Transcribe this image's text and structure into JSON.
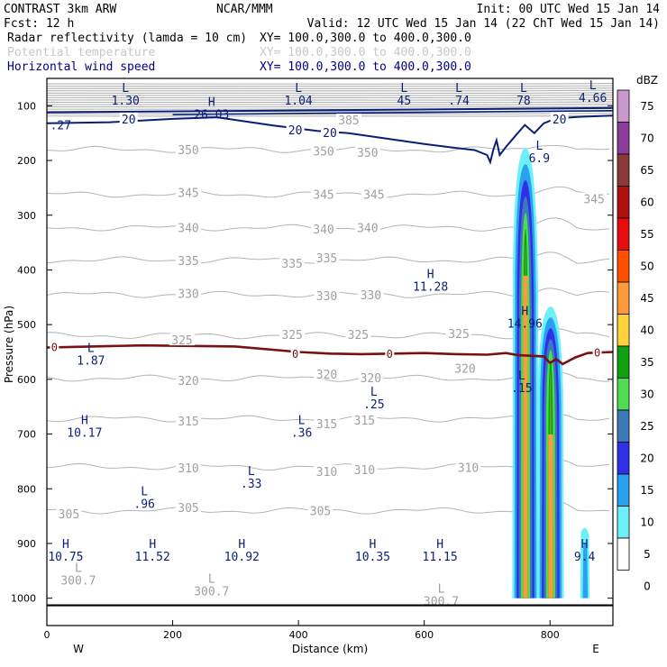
{
  "header": {
    "line1_left": "CONTRAST  3km ARW",
    "line1_mid": "NCAR/MMM",
    "line1_right": "Init: 00 UTC Wed 15 Jan 14",
    "line2_left": "Fcst:   12 h",
    "line2_right": "Valid: 12 UTC Wed 15 Jan 14 (22 ChT Wed 15 Jan 14)",
    "fields": [
      {
        "label": "Radar reflectivity (lamda = 10 cm)",
        "xy": "XY= 100.0,300.0 to 400.0,300.0",
        "color": "#000000"
      },
      {
        "label": "Potential temperature",
        "xy": "XY= 100.0,300.0 to 400.0,300.0",
        "color": "#c8c8c8"
      },
      {
        "label": "Horizontal wind speed",
        "xy": "XY= 100.0,300.0 to 400.0,300.0",
        "color": "#000080"
      }
    ]
  },
  "colors": {
    "theta": "#b4b4b4",
    "theta_label": "#a0a0a0",
    "wind": "#0a1e78",
    "zero_line": "#7a1010",
    "axis": "#000000"
  },
  "chart_data": {
    "type": "heatmap",
    "title": "Radar reflectivity (lamda = 10 cm) / Potential temperature / Horizontal wind speed",
    "xlabel": "Distance (km)",
    "ylabel": "Pressure (hPa)",
    "xlim": [
      0,
      900
    ],
    "ylim": [
      1050,
      50
    ],
    "x_ticks": [
      0,
      200,
      400,
      600,
      800
    ],
    "y_ticks": [
      100,
      200,
      300,
      400,
      500,
      600,
      700,
      800,
      900,
      1000
    ],
    "endpoints": {
      "left": "W",
      "right": "E"
    },
    "colorbar": {
      "unit": "dBZ",
      "levels": [
        75,
        70,
        65,
        60,
        55,
        50,
        45,
        40,
        35,
        30,
        25,
        20,
        15,
        10,
        5,
        0
      ],
      "colors": [
        "#c899cc",
        "#8a3d9c",
        "#8a3838",
        "#b01010",
        "#e80c0c",
        "#ff5000",
        "#ff9a3c",
        "#ffd23c",
        "#10a010",
        "#50dc50",
        "#3a7ab8",
        "#3030e8",
        "#2aa0f0",
        "#6ef0f8",
        "#ffffff"
      ]
    },
    "reflectivity_cells": [
      {
        "x": [
          740,
          782
        ],
        "p": [
          180,
          1000
        ],
        "max_dbz": 35
      },
      {
        "x": [
          780,
          822
        ],
        "p": [
          470,
          1000
        ],
        "max_dbz": 35
      }
    ],
    "theta_contours": [
      {
        "label": "350",
        "p": 180
      },
      {
        "label": "345",
        "p": 262
      },
      {
        "label": "340",
        "p": 323
      },
      {
        "label": "335",
        "p": 382
      },
      {
        "label": "330",
        "p": 445
      },
      {
        "label": "325",
        "p": 520
      },
      {
        "label": "320",
        "p": 598
      },
      {
        "label": "315",
        "p": 672
      },
      {
        "label": "310",
        "p": 760
      },
      {
        "label": "305",
        "p": 840
      }
    ],
    "theta_labels": [
      {
        "text": "385",
        "x": 480,
        "p": 126
      },
      {
        "text": "350",
        "x": 225,
        "p": 180
      },
      {
        "text": "350",
        "x": 440,
        "p": 183
      },
      {
        "text": "350",
        "x": 510,
        "p": 185
      },
      {
        "text": "345",
        "x": 225,
        "p": 258
      },
      {
        "text": "345",
        "x": 440,
        "p": 262
      },
      {
        "text": "345",
        "x": 520,
        "p": 262
      },
      {
        "text": "345",
        "x": 870,
        "p": 270
      },
      {
        "text": "340",
        "x": 225,
        "p": 323
      },
      {
        "text": "340",
        "x": 440,
        "p": 325
      },
      {
        "text": "340",
        "x": 510,
        "p": 323
      },
      {
        "text": "335",
        "x": 225,
        "p": 383
      },
      {
        "text": "335",
        "x": 390,
        "p": 388
      },
      {
        "text": "335",
        "x": 445,
        "p": 378
      },
      {
        "text": "330",
        "x": 225,
        "p": 443
      },
      {
        "text": "330",
        "x": 445,
        "p": 447
      },
      {
        "text": "330",
        "x": 515,
        "p": 445
      },
      {
        "text": "325",
        "x": 215,
        "p": 528
      },
      {
        "text": "325",
        "x": 390,
        "p": 518
      },
      {
        "text": "325",
        "x": 495,
        "p": 518
      },
      {
        "text": "325",
        "x": 655,
        "p": 516
      },
      {
        "text": "320",
        "x": 225,
        "p": 602
      },
      {
        "text": "320",
        "x": 445,
        "p": 590
      },
      {
        "text": "320",
        "x": 515,
        "p": 597
      },
      {
        "text": "320",
        "x": 665,
        "p": 580
      },
      {
        "text": "315",
        "x": 225,
        "p": 676
      },
      {
        "text": "315",
        "x": 445,
        "p": 681
      },
      {
        "text": "315",
        "x": 505,
        "p": 674
      },
      {
        "text": "310",
        "x": 225,
        "p": 762
      },
      {
        "text": "310",
        "x": 445,
        "p": 768
      },
      {
        "text": "310",
        "x": 505,
        "p": 765
      },
      {
        "text": "310",
        "x": 670,
        "p": 761
      },
      {
        "text": "305",
        "x": 35,
        "p": 846
      },
      {
        "text": "305",
        "x": 225,
        "p": 834
      },
      {
        "text": "305",
        "x": 435,
        "p": 840
      }
    ],
    "wind_labels": [
      {
        "text": "20",
        "x": 130,
        "p": 124
      },
      {
        "text": "20",
        "x": 395,
        "p": 144
      },
      {
        "text": "20",
        "x": 450,
        "p": 149
      },
      {
        "text": "20",
        "x": 815,
        "p": 124
      }
    ],
    "wind_contour_20": {
      "x": [
        0,
        100,
        200,
        270,
        300,
        360,
        430,
        480,
        540,
        600,
        650,
        680,
        700,
        705,
        710,
        715,
        720,
        730,
        745,
        760,
        775,
        790,
        810,
        850,
        900
      ],
      "p": [
        132,
        130,
        124,
        121,
        126,
        136,
        146,
        150,
        160,
        170,
        177,
        181,
        190,
        203,
        180,
        163,
        190,
        175,
        155,
        135,
        150,
        132,
        123,
        120,
        118
      ]
    },
    "zero_line": {
      "x": [
        0,
        150,
        300,
        400,
        450,
        500,
        550,
        600,
        650,
        700,
        730,
        750,
        790,
        800,
        810,
        820,
        840,
        860,
        900
      ],
      "p": [
        542,
        538,
        540,
        550,
        553,
        554,
        553,
        552,
        554,
        555,
        552,
        556,
        558,
        570,
        563,
        572,
        560,
        552,
        550
      ]
    },
    "zero_labels": [
      {
        "text": "0",
        "x": 12,
        "p": 542
      },
      {
        "text": "0",
        "x": 395,
        "p": 554
      },
      {
        "text": "0",
        "x": 545,
        "p": 554
      },
      {
        "text": "0",
        "x": 875,
        "p": 552
      }
    ],
    "annotations": [
      {
        "symbol": "L",
        "value": "1.30",
        "x": 125,
        "p": 85
      },
      {
        "symbol": "H",
        "value": "26.03",
        "x": 262,
        "p": 110
      },
      {
        "symbol": "L",
        "value": "1.04",
        "x": 400,
        "p": 85
      },
      {
        "symbol": "L",
        "value": "45",
        "x": 568,
        "p": 85
      },
      {
        "symbol": "L",
        "value": ".74",
        "x": 655,
        "p": 85
      },
      {
        "symbol": "L",
        "value": "78",
        "x": 758,
        "p": 85
      },
      {
        "symbol": "L",
        "value": "4.66",
        "x": 868,
        "p": 80
      },
      {
        "symbol": "",
        "value": ".27",
        "x": 22,
        "p": 130
      },
      {
        "symbol": "L",
        "value": "6.9",
        "x": 783,
        "p": 190
      },
      {
        "symbol": "H",
        "value": "11.28",
        "x": 610,
        "p": 425
      },
      {
        "symbol": "H",
        "value": "14.96",
        "x": 760,
        "p": 492
      },
      {
        "symbol": "L",
        "value": "1.87",
        "x": 70,
        "p": 560
      },
      {
        "symbol": "L",
        "value": ".15",
        "x": 755,
        "p": 610
      },
      {
        "symbol": "L",
        "value": ".25",
        "x": 520,
        "p": 640
      },
      {
        "symbol": "H",
        "value": "10.17",
        "x": 60,
        "p": 692
      },
      {
        "symbol": "L",
        "value": ".36",
        "x": 405,
        "p": 692
      },
      {
        "symbol": "L",
        "value": ".33",
        "x": 325,
        "p": 785
      },
      {
        "symbol": "L",
        "value": ".96",
        "x": 155,
        "p": 822
      },
      {
        "symbol": "H",
        "value": "10.75",
        "x": 30,
        "p": 918
      },
      {
        "symbol": "H",
        "value": "11.52",
        "x": 168,
        "p": 918
      },
      {
        "symbol": "H",
        "value": "10.92",
        "x": 310,
        "p": 918
      },
      {
        "symbol": "H",
        "value": "10.35",
        "x": 518,
        "p": 918
      },
      {
        "symbol": "H",
        "value": "11.15",
        "x": 625,
        "p": 918
      },
      {
        "symbol": "H",
        "value": "9.4",
        "x": 855,
        "p": 918
      }
    ],
    "low_theta_labels": [
      {
        "symbol": "L",
        "value": "300.7",
        "x": 50,
        "p": 962
      },
      {
        "symbol": "L",
        "value": "300.7",
        "x": 262,
        "p": 982
      },
      {
        "symbol": "L",
        "value": "300.7",
        "x": 627,
        "p": 1000
      }
    ]
  }
}
